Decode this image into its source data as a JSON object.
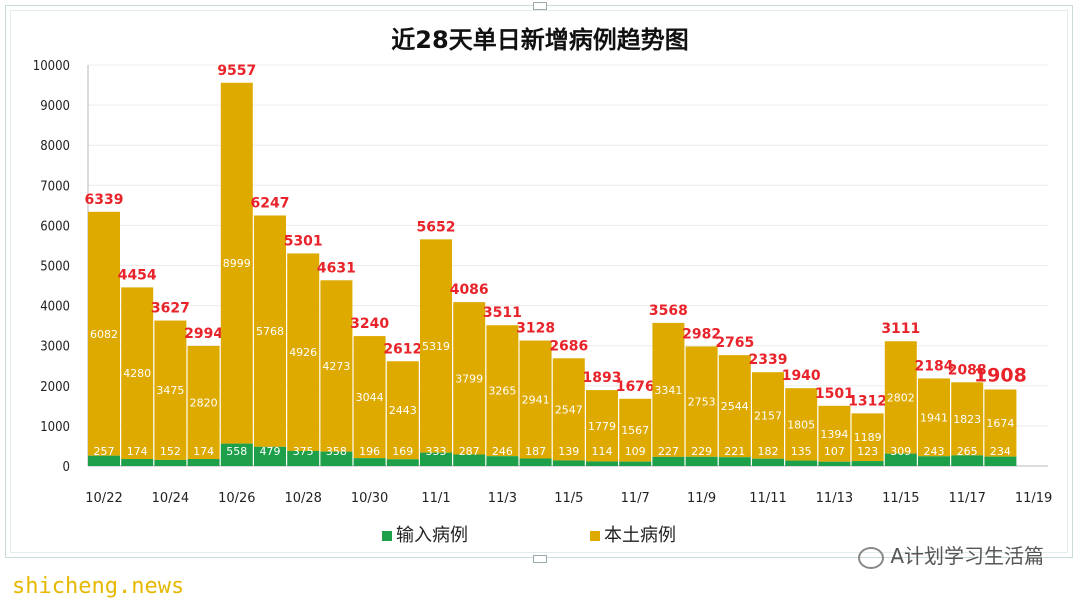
{
  "chart_data": {
    "type": "bar",
    "stacked": true,
    "title": "近28天单日新增病例趋势图",
    "ylim": [
      0,
      10000
    ],
    "yticks": [
      0,
      1000,
      2000,
      3000,
      4000,
      5000,
      6000,
      7000,
      8000,
      9000,
      10000
    ],
    "categories": [
      "10/22",
      "10/23",
      "10/24",
      "10/25",
      "10/26",
      "10/27",
      "10/28",
      "10/29",
      "10/30",
      "10/31",
      "11/1",
      "11/2",
      "11/3",
      "11/4",
      "11/5",
      "11/6",
      "11/7",
      "11/8",
      "11/9",
      "11/10",
      "11/11",
      "11/12",
      "11/13",
      "11/14",
      "11/15",
      "11/16",
      "11/17",
      "11/18"
    ],
    "xtick_labels": [
      "10/22",
      "10/24",
      "10/26",
      "10/28",
      "10/30",
      "11/1",
      "11/3",
      "11/5",
      "11/7",
      "11/9",
      "11/11",
      "11/13",
      "11/15",
      "11/17",
      "11/19"
    ],
    "series": [
      {
        "name": "输入病例",
        "color": "#1ea04a",
        "values": [
          257,
          174,
          152,
          174,
          558,
          479,
          375,
          358,
          196,
          169,
          333,
          287,
          246,
          187,
          139,
          114,
          109,
          227,
          229,
          221,
          182,
          135,
          107,
          123,
          309,
          243,
          265,
          234
        ]
      },
      {
        "name": "本土病例",
        "color": "#dfaa00",
        "values": [
          6082,
          4280,
          3475,
          2820,
          8999,
          5768,
          4926,
          4273,
          3044,
          2443,
          5319,
          3799,
          3265,
          2941,
          2547,
          1779,
          1567,
          3341,
          2753,
          2544,
          2157,
          1805,
          1394,
          1189,
          2802,
          1941,
          1823,
          1674
        ]
      }
    ],
    "totals": [
      6339,
      4454,
      3627,
      2994,
      9557,
      6247,
      5301,
      4631,
      3240,
      2612,
      5652,
      4086,
      3511,
      3128,
      2686,
      1893,
      1676,
      3568,
      2982,
      2765,
      2339,
      1940,
      1501,
      1312,
      3111,
      2184,
      2088,
      1908
    ],
    "total_label_color": "#e8232a",
    "grid": true,
    "legend_position": "bottom"
  },
  "legend": {
    "import_label": "输入病例",
    "local_label": "本土病例"
  },
  "watermark": {
    "brand_text": "A计划学习生活篇",
    "site_text": "shicheng.news"
  }
}
